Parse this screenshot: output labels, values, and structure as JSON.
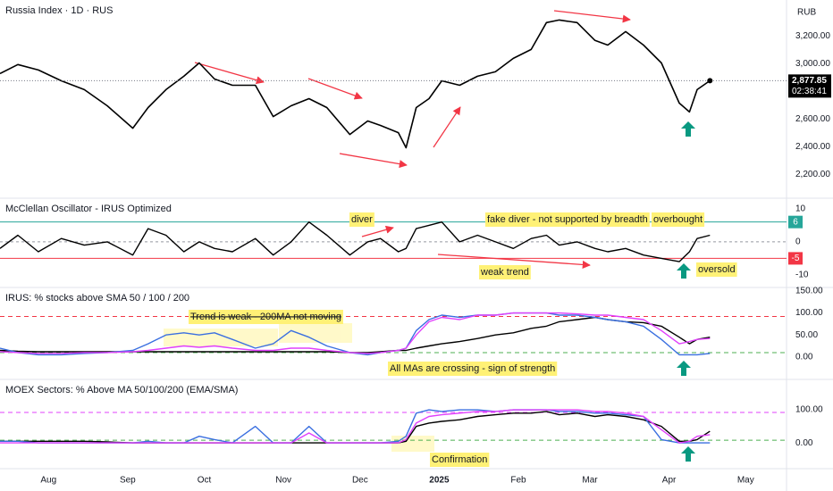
{
  "chart_data": [
    {
      "type": "line",
      "title": "Russia Index · 1D · RUS",
      "currency": "RUB",
      "price_label": "2,877.85",
      "countdown": "02:38:41",
      "x": [
        -19,
        -12,
        -4,
        5,
        14,
        23,
        33,
        39,
        46,
        53,
        59,
        65,
        72,
        81,
        88,
        95,
        102,
        109,
        118,
        125,
        130,
        137,
        140,
        144,
        149,
        154,
        161,
        168,
        175,
        182,
        189,
        195,
        200,
        207,
        214,
        219,
        226,
        233,
        240,
        247,
        251,
        254,
        259
      ],
      "xlim": [
        -19,
        289
      ],
      "xticks": [
        {
          "value": 0,
          "label": "Aug"
        },
        {
          "value": 31,
          "label": "Sep"
        },
        {
          "value": 61,
          "label": "Oct"
        },
        {
          "value": 92,
          "label": "Nov"
        },
        {
          "value": 122,
          "label": "Dec"
        },
        {
          "value": 153,
          "label": "2025"
        },
        {
          "value": 184,
          "label": "Feb"
        },
        {
          "value": 212,
          "label": "Mar"
        },
        {
          "value": 243,
          "label": "Apr"
        },
        {
          "value": 273,
          "label": "May"
        }
      ],
      "ylim": [
        2030,
        3460
      ],
      "yticks": [
        {
          "value": 3200,
          "label": "3,200.00"
        },
        {
          "value": 3000,
          "label": "3,000.00"
        },
        {
          "value": 2600,
          "label": "2,600.00"
        },
        {
          "value": 2400,
          "label": "2,400.00"
        },
        {
          "value": 2200,
          "label": "2,200.00"
        }
      ],
      "series": [
        {
          "name": "Russia Index",
          "color": "#000000",
          "values": [
            2929,
            2994,
            2955,
            2877,
            2813,
            2697,
            2535,
            2684,
            2813,
            2910,
            3006,
            2890,
            2845,
            2845,
            2619,
            2697,
            2748,
            2684,
            2490,
            2587,
            2555,
            2503,
            2394,
            2684,
            2748,
            2877,
            2845,
            2910,
            2942,
            3039,
            3103,
            3297,
            3316,
            3297,
            3168,
            3135,
            3232,
            3135,
            3006,
            2716,
            2652,
            2813,
            2877.85
          ]
        }
      ]
    },
    {
      "type": "line",
      "title": "McClellan Oscillator - IRUS Optimized",
      "ylim": [
        -13.8,
        13.2
      ],
      "yticks": [
        10,
        0,
        -10
      ],
      "reference_lines": [
        {
          "value": 6,
          "color": "#26a69a"
        },
        {
          "value": -5,
          "color": "#f23645"
        }
      ],
      "annotations": [
        "diver",
        "fake diver - not supported by breadth",
        "overbought",
        "weak trend",
        "oversold"
      ],
      "series": [
        {
          "name": "McClellan Oscillator",
          "color": "#000000",
          "values": [
            -2,
            2,
            -3,
            1,
            -1,
            0,
            -4,
            4,
            2,
            -3,
            0,
            -2,
            -3,
            1,
            -4,
            0,
            6,
            2,
            -4,
            0,
            1,
            -3,
            -2,
            4,
            5,
            6,
            0,
            2,
            0,
            -2,
            1,
            2,
            -1,
            0,
            -2,
            -3,
            -2,
            -4,
            -5,
            -6,
            -3,
            1,
            2
          ]
        }
      ]
    },
    {
      "type": "line",
      "title": "IRUS: % stocks above SMA 50 / 100 / 200",
      "ylim": [
        -51,
        158
      ],
      "yticks": [
        {
          "value": 150,
          "label": "150.00"
        },
        {
          "value": 100,
          "label": "100.00"
        },
        {
          "value": 50,
          "label": "50.00"
        },
        {
          "value": 0,
          "label": "0.00"
        }
      ],
      "reference_lines": [
        {
          "value": 92,
          "color": "#f23645"
        },
        {
          "value": 10,
          "color": "#4caf50"
        }
      ],
      "annotations": [
        "Trend is weak - 200MA not moving",
        "All MAs are crossing - sign of strength"
      ],
      "series": [
        {
          "name": "SMA 200",
          "color": "#000000",
          "values": [
            15,
            13,
            12,
            12,
            12,
            12,
            12,
            12,
            12,
            12,
            12,
            12,
            12,
            12,
            12,
            12,
            12,
            12,
            10,
            10,
            12,
            15,
            15,
            20,
            25,
            30,
            35,
            42,
            50,
            55,
            65,
            70,
            80,
            85,
            90,
            85,
            80,
            78,
            70,
            45,
            30,
            40,
            45
          ]
        },
        {
          "name": "SMA 50",
          "color": "#3a6fe0",
          "values": [
            20,
            10,
            5,
            5,
            8,
            10,
            15,
            30,
            50,
            55,
            50,
            55,
            40,
            20,
            30,
            60,
            45,
            25,
            10,
            5,
            10,
            15,
            20,
            60,
            85,
            95,
            90,
            95,
            95,
            100,
            100,
            100,
            95,
            95,
            90,
            85,
            80,
            70,
            40,
            5,
            5,
            5,
            8
          ]
        },
        {
          "name": "SMA 100",
          "color": "#e040fb",
          "values": [
            12,
            10,
            8,
            8,
            10,
            10,
            12,
            15,
            20,
            25,
            22,
            25,
            20,
            15,
            15,
            20,
            20,
            15,
            10,
            8,
            10,
            15,
            20,
            50,
            80,
            90,
            85,
            95,
            95,
            100,
            100,
            100,
            100,
            98,
            95,
            95,
            90,
            85,
            60,
            30,
            35,
            40,
            42
          ]
        }
      ]
    },
    {
      "type": "line",
      "title": "MOEX Sectors: % Above MA 50/100/200 (EMA/SMA)",
      "ylim": [
        -78,
        192
      ],
      "yticks": [
        {
          "value": 100,
          "label": "100.00"
        },
        {
          "value": 0,
          "label": "0.00"
        }
      ],
      "reference_lines": [
        {
          "value": 92,
          "color": "#e040fb"
        },
        {
          "value": 8,
          "color": "#4caf50"
        }
      ],
      "annotations": [
        "Confirmation"
      ],
      "series": [
        {
          "name": "MA 200",
          "color": "#000000",
          "values": [
            5,
            5,
            5,
            5,
            5,
            3,
            0,
            0,
            0,
            0,
            0,
            0,
            0,
            0,
            0,
            0,
            0,
            0,
            0,
            0,
            0,
            0,
            5,
            50,
            60,
            65,
            70,
            80,
            85,
            90,
            90,
            95,
            85,
            90,
            80,
            85,
            80,
            70,
            50,
            5,
            5,
            10,
            35
          ]
        },
        {
          "name": "MA 50",
          "color": "#3a6fe0",
          "values": [
            5,
            5,
            0,
            0,
            0,
            0,
            0,
            5,
            0,
            0,
            20,
            10,
            0,
            50,
            0,
            0,
            50,
            0,
            0,
            0,
            0,
            5,
            20,
            90,
            100,
            95,
            100,
            100,
            95,
            100,
            100,
            100,
            95,
            95,
            90,
            90,
            85,
            80,
            10,
            0,
            0,
            0,
            0
          ]
        },
        {
          "name": "MA 100",
          "color": "#e040fb",
          "values": [
            0,
            0,
            0,
            0,
            0,
            0,
            0,
            0,
            0,
            0,
            0,
            0,
            0,
            0,
            0,
            0,
            30,
            0,
            0,
            0,
            0,
            0,
            10,
            60,
            80,
            85,
            90,
            95,
            95,
            100,
            100,
            100,
            100,
            100,
            95,
            95,
            90,
            80,
            40,
            0,
            5,
            20,
            25
          ]
        }
      ]
    }
  ]
}
